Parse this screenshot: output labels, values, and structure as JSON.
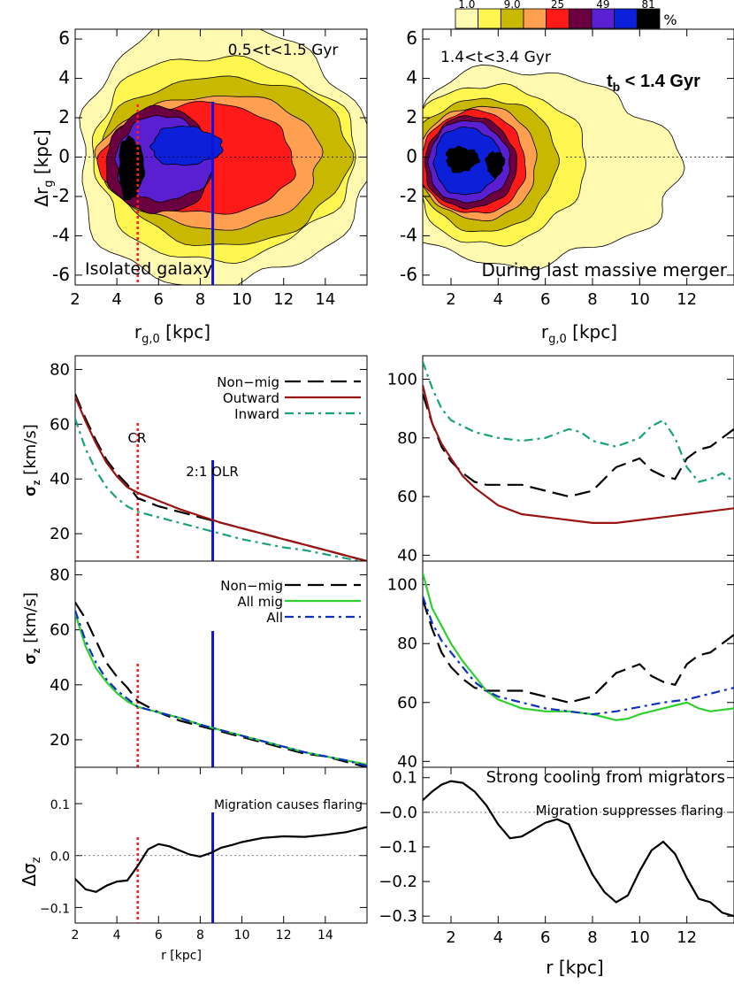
{
  "colorbar": {
    "ticks": [
      "1.0",
      "9.0",
      "25",
      "49",
      "81"
    ],
    "unit": "%",
    "colors": [
      "#fffab0",
      "#fff650",
      "#c8b800",
      "#ff9f50",
      "#ff1a1a",
      "#6a0040",
      "#5a1fd0",
      "#0b20d8",
      "#000000"
    ]
  },
  "colors": {
    "red": "#9b1414",
    "green_dashdot": "#1aa07a",
    "bright_green": "#2ed02e",
    "blue_dashdot": "#1030c0",
    "cr_line": "#ff1a1a",
    "olr_line": "#1010e0"
  },
  "panels": {
    "density_left": {
      "time_label": "0.5<t<1.5  Gyr",
      "caption": "Isolated galaxy",
      "xlabel": "r",
      "xlabel_sub": "g,0",
      "xlabel_unit": " [kpc]",
      "ylabel": "Δr",
      "ylabel_sub": "g",
      "ylabel_unit": " [kpc]"
    },
    "density_right": {
      "time_label": "1.4<t<3.4  Gyr",
      "tb_label": "t",
      "tb_sub": "b",
      "tb_rest": " < 1.4 Gyr",
      "caption": "During last massive merger",
      "xlabel": "r",
      "xlabel_sub": "g,0",
      "xlabel_unit": " [kpc]"
    },
    "sigma_top_left": {
      "ylabel": "σ",
      "ylabel_sub": "z",
      "ylabel_unit": " [km/s]",
      "legend": [
        "Non−mig",
        "Outward",
        "Inward"
      ],
      "cr_label": "CR",
      "olr_label": "2:1 OLR"
    },
    "sigma_mid_left": {
      "ylabel": "σ",
      "ylabel_sub": "z",
      "ylabel_unit": " [km/s]",
      "legend": [
        "Non−mig",
        "All mig",
        "All"
      ]
    },
    "sigma_mid_right": {
      "caption": "Strong cooling from migrators"
    },
    "delta_left": {
      "ylabel": "Δσ",
      "ylabel_sub": "z",
      "caption": "Migration causes flaring",
      "xlabel": "r  [kpc]"
    },
    "delta_right": {
      "caption": "Migration suppresses flaring",
      "xlabel": "r  [kpc]"
    }
  },
  "chart_data": [
    {
      "type": "heatmap",
      "panel": "density_left",
      "x_ticks": [
        2,
        4,
        6,
        8,
        10,
        12,
        14
      ],
      "y_ticks": [
        -6,
        -4,
        -2,
        0,
        2,
        4,
        6
      ],
      "xlim": [
        2,
        16
      ],
      "ylim": [
        -6.5,
        6.5
      ],
      "vlines": [
        5.0,
        8.6
      ]
    },
    {
      "type": "heatmap",
      "panel": "density_right",
      "x_ticks": [
        2,
        4,
        6,
        8,
        10,
        12
      ],
      "y_ticks": [
        -6,
        -4,
        -2,
        0,
        2,
        4,
        6
      ],
      "xlim": [
        0.8,
        14
      ],
      "ylim": [
        -6.5,
        6.5
      ]
    },
    {
      "type": "line",
      "panel": "sigma_top_left",
      "xlim": [
        2,
        16
      ],
      "ylim": [
        10,
        85
      ],
      "y_ticks": [
        20,
        40,
        60,
        80
      ],
      "vlines": [
        5.0,
        8.6
      ],
      "series": [
        {
          "name": "Non−mig",
          "style": "dashed",
          "x": [
            2,
            2.5,
            3,
            3.5,
            4,
            4.5,
            5,
            6,
            7,
            8,
            9,
            10,
            11,
            12,
            13,
            14,
            15,
            16
          ],
          "y": [
            71,
            62,
            54,
            47,
            42,
            38,
            33,
            30,
            28,
            26,
            24,
            22,
            20,
            18,
            16,
            14,
            12,
            10
          ]
        },
        {
          "name": "Outward",
          "style": "solid",
          "x": [
            2,
            2.5,
            3,
            3.5,
            4,
            4.5,
            5,
            6,
            7,
            8,
            9,
            10,
            11,
            12,
            13,
            14,
            15,
            16
          ],
          "y": [
            70,
            61,
            53,
            46,
            41,
            37,
            35,
            32,
            29,
            26.5,
            24,
            22,
            20,
            18,
            16,
            14,
            12,
            10
          ]
        },
        {
          "name": "Inward",
          "style": "dashdot",
          "x": [
            2,
            2.5,
            3,
            3.5,
            4,
            4.5,
            5,
            6,
            7,
            8,
            9,
            10,
            11,
            12,
            13,
            14,
            15,
            16
          ],
          "y": [
            62,
            51,
            43,
            37,
            33,
            30,
            28,
            26,
            24,
            22,
            20,
            18,
            16.5,
            15,
            14,
            12.5,
            11,
            9.5
          ]
        }
      ]
    },
    {
      "type": "line",
      "panel": "sigma_top_right",
      "xlim": [
        0.8,
        14
      ],
      "ylim": [
        38,
        108
      ],
      "y_ticks": [
        40,
        60,
        80,
        100
      ],
      "series": [
        {
          "style": "dashed",
          "x": [
            0.8,
            1.2,
            1.6,
            2,
            2.5,
            3,
            3.5,
            4,
            5,
            6,
            7,
            8,
            8.5,
            9,
            10,
            10.5,
            11,
            11.5,
            12,
            12.5,
            13,
            13.5,
            14
          ],
          "y": [
            95,
            85,
            77,
            72,
            68,
            65,
            64,
            64,
            64,
            62,
            60,
            62,
            66,
            70,
            73,
            69,
            67,
            66,
            73,
            76,
            77,
            80,
            83
          ]
        },
        {
          "style": "solid",
          "x": [
            0.8,
            1.2,
            1.6,
            2,
            2.5,
            3,
            3.5,
            4,
            5,
            6,
            7,
            8,
            9,
            10,
            11,
            12,
            13,
            14
          ],
          "y": [
            98,
            85,
            78,
            73,
            67,
            63,
            60,
            57,
            54,
            53,
            52,
            51,
            51,
            52,
            53,
            54,
            55,
            56
          ]
        },
        {
          "style": "dashdot",
          "x": [
            0.8,
            1.2,
            1.6,
            2,
            2.5,
            3,
            3.5,
            4,
            5,
            6,
            7,
            7.5,
            8,
            9,
            10,
            10.5,
            11,
            11.5,
            12,
            12.5,
            13,
            13.5,
            14
          ],
          "y": [
            106,
            97,
            90,
            86,
            84,
            82,
            81,
            80,
            79,
            80,
            83,
            82,
            79,
            77,
            80,
            84,
            86,
            80,
            70,
            65,
            66,
            68,
            65
          ]
        }
      ]
    },
    {
      "type": "line",
      "panel": "sigma_mid_left",
      "xlim": [
        2,
        16
      ],
      "ylim": [
        10,
        85
      ],
      "y_ticks": [
        20,
        40,
        60,
        80
      ],
      "vlines": [
        5.0,
        8.6
      ],
      "series": [
        {
          "name": "Non−mig",
          "style": "dashed",
          "x": [
            2,
            2.5,
            3,
            3.5,
            4,
            4.5,
            5,
            6,
            7,
            8,
            9,
            10,
            11,
            12,
            13,
            14,
            15,
            16
          ],
          "y": [
            70,
            64,
            56,
            48,
            43,
            39,
            34,
            30,
            27,
            25,
            23,
            21,
            19,
            17,
            15,
            14,
            12,
            10
          ]
        },
        {
          "name": "All mig",
          "style": "solid",
          "x": [
            2,
            2.5,
            3,
            3.5,
            4,
            4.5,
            5,
            6,
            7,
            8,
            9,
            10,
            11,
            12,
            13,
            14,
            15,
            16
          ],
          "y": [
            66,
            54,
            46,
            41,
            37,
            34,
            32,
            30,
            28,
            25.5,
            23.5,
            21.5,
            19.5,
            17.5,
            15.5,
            14,
            12.5,
            11
          ]
        },
        {
          "name": "All",
          "style": "dashdot",
          "x": [
            2,
            2.5,
            3,
            3.5,
            4,
            4.5,
            5,
            6,
            7,
            8,
            9,
            10,
            11,
            12,
            13,
            14,
            15,
            16
          ],
          "y": [
            67,
            56,
            48,
            42,
            38,
            35,
            32,
            30,
            28,
            25.5,
            23.5,
            21.5,
            19.5,
            17.5,
            15.5,
            14,
            12.5,
            10.5
          ]
        }
      ]
    },
    {
      "type": "line",
      "panel": "sigma_mid_right",
      "xlim": [
        0.8,
        14
      ],
      "ylim": [
        38,
        108
      ],
      "y_ticks": [
        40,
        60,
        80,
        100
      ],
      "series": [
        {
          "style": "dashed",
          "x": [
            0.8,
            1.2,
            1.6,
            2,
            2.5,
            3,
            3.5,
            4,
            5,
            6,
            7,
            8,
            8.5,
            9,
            10,
            10.5,
            11,
            11.5,
            12,
            12.5,
            13,
            13.5,
            14
          ],
          "y": [
            95,
            85,
            77,
            72,
            68,
            65,
            64,
            64,
            64,
            62,
            60,
            62,
            66,
            70,
            73,
            69,
            67,
            66,
            73,
            76,
            77,
            80,
            83
          ]
        },
        {
          "style": "solid",
          "x": [
            0.8,
            1.2,
            1.6,
            2,
            2.5,
            3,
            3.5,
            4,
            5,
            6,
            7,
            8,
            9,
            9.5,
            10,
            11,
            12,
            12.5,
            13,
            14
          ],
          "y": [
            104,
            92,
            86,
            80,
            74,
            69,
            64,
            61,
            58,
            57,
            57,
            56,
            54,
            54.5,
            56,
            58,
            60,
            58,
            57,
            58
          ]
        },
        {
          "style": "dashdot",
          "x": [
            0.8,
            1.2,
            1.6,
            2,
            2.5,
            3,
            3.5,
            4,
            5,
            6,
            7,
            8,
            9,
            10,
            11,
            12,
            13,
            14
          ],
          "y": [
            96,
            87,
            81,
            77,
            72,
            67,
            64,
            62,
            60,
            58,
            57,
            56,
            57,
            58.5,
            60,
            61,
            63,
            65
          ]
        }
      ]
    },
    {
      "type": "line",
      "panel": "delta_left",
      "xlim": [
        2,
        16
      ],
      "ylim": [
        -0.13,
        0.17
      ],
      "x_ticks": [
        2,
        4,
        6,
        8,
        10,
        12,
        14
      ],
      "y_ticks": [
        -0.1,
        0.0,
        0.1
      ],
      "y_tick_labels": [
        "−0.1",
        "0.0",
        "0.1"
      ],
      "vlines": [
        5.0,
        8.6
      ],
      "series": [
        {
          "style": "solid",
          "x": [
            2,
            2.5,
            3,
            3.5,
            4,
            4.5,
            5,
            5.5,
            6,
            6.5,
            7,
            7.5,
            8,
            8.5,
            9,
            9.5,
            10,
            11,
            12,
            13,
            14,
            15,
            16
          ],
          "y": [
            -0.045,
            -0.065,
            -0.07,
            -0.058,
            -0.05,
            -0.048,
            -0.02,
            0.012,
            0.022,
            0.018,
            0.01,
            0.002,
            -0.002,
            0.005,
            0.015,
            0.02,
            0.026,
            0.034,
            0.037,
            0.036,
            0.04,
            0.045,
            0.055
          ]
        }
      ]
    },
    {
      "type": "line",
      "panel": "delta_right",
      "xlim": [
        0.8,
        14
      ],
      "ylim": [
        -0.32,
        0.13
      ],
      "x_ticks": [
        2,
        4,
        6,
        8,
        10,
        12
      ],
      "y_ticks": [
        -0.3,
        -0.2,
        -0.1,
        0.0,
        0.1
      ],
      "y_tick_labels": [
        "−0.3",
        "−0.2",
        "−0.1",
        "−0.0",
        "0.1"
      ],
      "series": [
        {
          "style": "solid",
          "x": [
            0.8,
            1.2,
            1.6,
            2,
            2.5,
            3,
            3.5,
            4,
            4.5,
            5,
            5.5,
            6,
            6.5,
            7,
            7.5,
            8,
            8.5,
            9,
            9.5,
            10,
            10.5,
            11,
            11.5,
            12,
            12.5,
            13,
            13.5,
            14
          ],
          "y": [
            0.035,
            0.06,
            0.08,
            0.09,
            0.085,
            0.06,
            0.02,
            -0.035,
            -0.075,
            -0.07,
            -0.05,
            -0.03,
            -0.02,
            -0.035,
            -0.11,
            -0.18,
            -0.23,
            -0.26,
            -0.24,
            -0.17,
            -0.11,
            -0.085,
            -0.12,
            -0.19,
            -0.25,
            -0.26,
            -0.29,
            -0.3
          ]
        }
      ]
    }
  ]
}
